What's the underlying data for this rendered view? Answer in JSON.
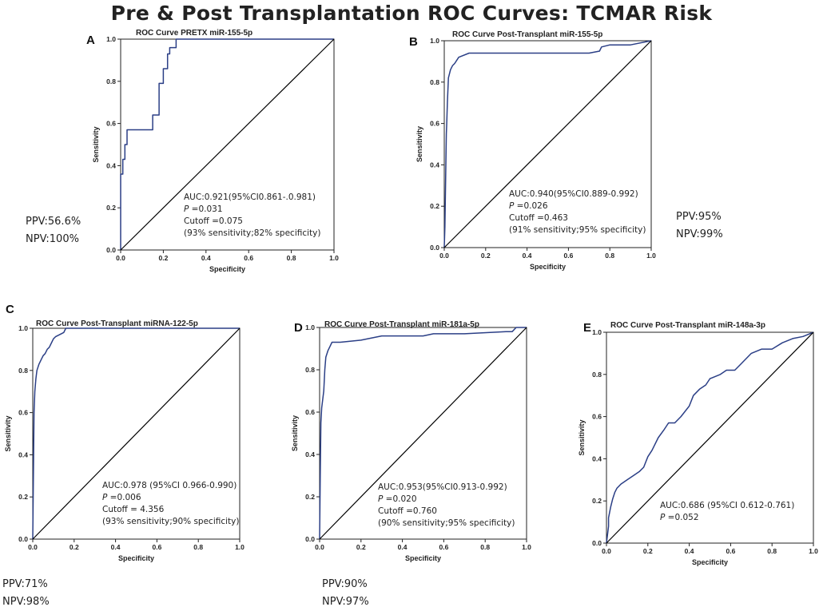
{
  "figure": {
    "title": "Pre & Post Transplantation ROC Curves: TCMAR Risk"
  },
  "colors": {
    "curve": "#2b3f86",
    "diagonal": "#000000",
    "axis": "#222222",
    "background": "#ffffff"
  },
  "chart_data": [
    {
      "panel": "A",
      "type": "line",
      "title": "ROC Curve PRETX miR-155-5p",
      "xlabel": "Specificity",
      "ylabel": "Sensitivity",
      "xlim": [
        0,
        1
      ],
      "ylim": [
        0,
        1
      ],
      "xticks": [
        "0.0",
        "0.2",
        "0.4",
        "0.6",
        "0.8",
        "1.0"
      ],
      "yticks": [
        "0.0",
        "0.2",
        "0.4",
        "0.6",
        "0.8",
        "1.0"
      ],
      "series": [
        {
          "name": "ROC",
          "x": [
            0,
            0,
            0.01,
            0.01,
            0.02,
            0.02,
            0.03,
            0.03,
            0.15,
            0.15,
            0.18,
            0.18,
            0.2,
            0.2,
            0.22,
            0.22,
            0.23,
            0.23,
            0.26,
            0.26,
            1.0
          ],
          "y": [
            0,
            0.36,
            0.36,
            0.43,
            0.43,
            0.5,
            0.5,
            0.57,
            0.57,
            0.64,
            0.64,
            0.79,
            0.79,
            0.86,
            0.86,
            0.93,
            0.93,
            0.96,
            0.96,
            1.0,
            1.0
          ]
        },
        {
          "name": "Reference",
          "x": [
            0,
            1
          ],
          "y": [
            0,
            1
          ]
        }
      ],
      "annotation": [
        "AUC:0.921(95%CI0.861-.0.981)",
        "P =0.031",
        "Cutoff =0.075",
        "(93% sensitivity;82% specificity)"
      ],
      "ppv": "PPV:56.6%",
      "npv": "NPV:100%"
    },
    {
      "panel": "B",
      "type": "line",
      "title": "ROC Curve Post-Transplant miR-155-5p",
      "xlabel": "Specificity",
      "ylabel": "Sensitivity",
      "xlim": [
        0,
        1
      ],
      "ylim": [
        0,
        1
      ],
      "xticks": [
        "0.0",
        "0.2",
        "0.4",
        "0.6",
        "0.8",
        "1.0"
      ],
      "yticks": [
        "0.0",
        "0.2",
        "0.4",
        "0.6",
        "0.8",
        "1.0"
      ],
      "series": [
        {
          "name": "ROC",
          "x": [
            0,
            0.003,
            0.006,
            0.01,
            0.012,
            0.015,
            0.02,
            0.03,
            0.04,
            0.05,
            0.07,
            0.12,
            0.2,
            0.3,
            0.5,
            0.7,
            0.75,
            0.76,
            0.8,
            0.9,
            1.0
          ],
          "y": [
            0,
            0.1,
            0.3,
            0.55,
            0.6,
            0.7,
            0.82,
            0.86,
            0.88,
            0.89,
            0.92,
            0.94,
            0.94,
            0.94,
            0.94,
            0.94,
            0.95,
            0.97,
            0.98,
            0.98,
            1.0
          ]
        },
        {
          "name": "Reference",
          "x": [
            0,
            1
          ],
          "y": [
            0,
            1
          ]
        }
      ],
      "annotation": [
        "AUC:0.940(95%CI0.889-0.992)",
        "P =0.026",
        "Cutoff =0.463",
        "(91% sensitivity;95% specificity)"
      ],
      "ppv": "PPV:95%",
      "npv": "NPV:99%"
    },
    {
      "panel": "C",
      "type": "line",
      "title": "ROC Curve Post-Transplant miRNA-122-5p",
      "xlabel": "Specificity",
      "ylabel": "Sensitivity",
      "xlim": [
        0,
        1
      ],
      "ylim": [
        0,
        1
      ],
      "xticks": [
        "0.0",
        "0.2",
        "0.4",
        "0.6",
        "0.8",
        "1.0"
      ],
      "yticks": [
        "0.0",
        "0.2",
        "0.4",
        "0.6",
        "0.8",
        "1.0"
      ],
      "series": [
        {
          "name": "ROC",
          "x": [
            0,
            0.003,
            0.006,
            0.01,
            0.015,
            0.02,
            0.03,
            0.04,
            0.05,
            0.06,
            0.07,
            0.08,
            0.09,
            0.1,
            0.11,
            0.13,
            0.15,
            0.16,
            1.0
          ],
          "y": [
            0,
            0.3,
            0.6,
            0.7,
            0.76,
            0.8,
            0.83,
            0.85,
            0.87,
            0.88,
            0.9,
            0.91,
            0.93,
            0.95,
            0.96,
            0.97,
            0.98,
            1.0,
            1.0
          ]
        },
        {
          "name": "Reference",
          "x": [
            0,
            1
          ],
          "y": [
            0,
            1
          ]
        }
      ],
      "annotation": [
        "AUC:0.978 (95%CI 0.966-0.990)",
        "P =0.006",
        "Cutoff = 4.356",
        "(93% sensitivity;90% specificity)"
      ],
      "ppv": "PPV:71%",
      "npv": "NPV:98%"
    },
    {
      "panel": "D",
      "type": "line",
      "title": "ROC Curve Post-Transplant miR-181a-5p",
      "xlabel": "Specificity",
      "ylabel": "Sensitivity",
      "xlim": [
        0,
        1
      ],
      "ylim": [
        0,
        1
      ],
      "xticks": [
        "0.0",
        "0.2",
        "0.4",
        "0.6",
        "0.8",
        "1.0"
      ],
      "yticks": [
        "0.0",
        "0.2",
        "0.4",
        "0.6",
        "0.8",
        "1.0"
      ],
      "series": [
        {
          "name": "ROC",
          "x": [
            0,
            0.003,
            0.006,
            0.01,
            0.015,
            0.02,
            0.025,
            0.03,
            0.04,
            0.05,
            0.06,
            0.1,
            0.2,
            0.3,
            0.5,
            0.55,
            0.7,
            0.9,
            0.93,
            0.95,
            1.0
          ],
          "y": [
            0,
            0.3,
            0.55,
            0.62,
            0.66,
            0.7,
            0.8,
            0.86,
            0.89,
            0.91,
            0.93,
            0.93,
            0.94,
            0.96,
            0.96,
            0.97,
            0.97,
            0.98,
            0.98,
            1.0,
            1.0
          ]
        },
        {
          "name": "Reference",
          "x": [
            0,
            1
          ],
          "y": [
            0,
            1
          ]
        }
      ],
      "annotation": [
        "AUC:0.953(95%CI0.913-0.992)",
        "P =0.020",
        "Cutoff =0.760",
        "(90% sensitivity;95% specificity)"
      ],
      "ppv": "PPV:90%",
      "npv": "NPV:97%"
    },
    {
      "panel": "E",
      "type": "line",
      "title": "ROC Curve Post-Transplant miR-148a-3p",
      "xlabel": "Specificity",
      "ylabel": "Sensitivity",
      "xlim": [
        0,
        1
      ],
      "ylim": [
        0,
        1
      ],
      "xticks": [
        "0.0",
        "0.2",
        "0.4",
        "0.6",
        "0.8",
        "1.0"
      ],
      "yticks": [
        "0.0",
        "0.2",
        "0.4",
        "0.6",
        "0.8",
        "1.0"
      ],
      "series": [
        {
          "name": "ROC",
          "x": [
            0,
            0.01,
            0.01,
            0.02,
            0.03,
            0.04,
            0.05,
            0.07,
            0.1,
            0.13,
            0.16,
            0.18,
            0.2,
            0.22,
            0.25,
            0.28,
            0.3,
            0.33,
            0.36,
            0.4,
            0.42,
            0.45,
            0.48,
            0.5,
            0.55,
            0.58,
            0.62,
            0.65,
            0.7,
            0.75,
            0.8,
            0.85,
            0.9,
            0.95,
            1.0
          ],
          "y": [
            0,
            0.08,
            0.12,
            0.17,
            0.21,
            0.24,
            0.26,
            0.28,
            0.3,
            0.32,
            0.34,
            0.36,
            0.41,
            0.44,
            0.5,
            0.54,
            0.57,
            0.57,
            0.6,
            0.65,
            0.7,
            0.73,
            0.75,
            0.78,
            0.8,
            0.82,
            0.82,
            0.85,
            0.9,
            0.92,
            0.92,
            0.95,
            0.97,
            0.98,
            1.0
          ]
        },
        {
          "name": "Reference",
          "x": [
            0,
            1
          ],
          "y": [
            0,
            1
          ]
        }
      ],
      "annotation": [
        "AUC:0.686 (95%CI 0.612-0.761)",
        "P =0.052"
      ]
    }
  ]
}
